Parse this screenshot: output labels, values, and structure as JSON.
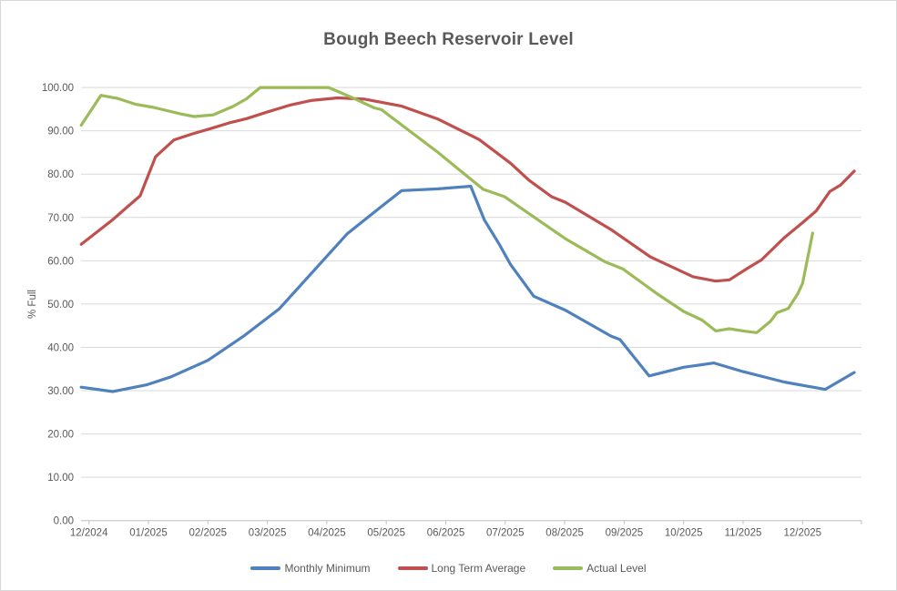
{
  "chart": {
    "title": "Bough Beech Reservoir Level"
  },
  "chart_data": {
    "type": "line",
    "title": "Bough Beech Reservoir Level",
    "xlabel": "",
    "ylabel": "% Full",
    "ylim": [
      0,
      100
    ],
    "y_tick_step": 10,
    "y_tick_decimals": 2,
    "grid": "horizontal",
    "legend_position": "bottom",
    "x_tick_labels": [
      "12/2024",
      "01/2025",
      "02/2025",
      "03/2025",
      "04/2025",
      "05/2025",
      "06/2025",
      "07/2025",
      "08/2025",
      "09/2025",
      "10/2025",
      "11/2025",
      "12/2025"
    ],
    "x_unit": "months relative to the 12/2024 tick (fractional = intra-month readings)",
    "series": [
      {
        "name": "Monthly Minimum",
        "color": "#4F81BD",
        "points": [
          [
            -0.13,
            30.8
          ],
          [
            0.4,
            29.8
          ],
          [
            0.98,
            31.4
          ],
          [
            1.38,
            33.2
          ],
          [
            2.0,
            37.0
          ],
          [
            2.6,
            42.6
          ],
          [
            3.2,
            48.9
          ],
          [
            3.88,
            59.2
          ],
          [
            4.34,
            66.2
          ],
          [
            4.87,
            72.0
          ],
          [
            5.26,
            76.2
          ],
          [
            5.87,
            76.6
          ],
          [
            6.42,
            77.2
          ],
          [
            6.65,
            69.4
          ],
          [
            6.9,
            63.8
          ],
          [
            7.09,
            59.1
          ],
          [
            7.48,
            51.8
          ],
          [
            8.01,
            48.6
          ],
          [
            8.78,
            42.6
          ],
          [
            8.93,
            41.8
          ],
          [
            9.42,
            33.4
          ],
          [
            10.0,
            35.4
          ],
          [
            10.51,
            36.4
          ],
          [
            11.0,
            34.4
          ],
          [
            11.69,
            32.0
          ],
          [
            12.38,
            30.3
          ],
          [
            12.87,
            34.2
          ]
        ]
      },
      {
        "name": "Long Term Average",
        "color": "#C0504D",
        "points": [
          [
            -0.13,
            63.8
          ],
          [
            0.4,
            69.5
          ],
          [
            0.86,
            75.0
          ],
          [
            1.12,
            84.0
          ],
          [
            1.43,
            87.9
          ],
          [
            1.74,
            89.3
          ],
          [
            2.04,
            90.5
          ],
          [
            2.35,
            91.8
          ],
          [
            2.65,
            92.8
          ],
          [
            2.99,
            94.3
          ],
          [
            3.37,
            95.9
          ],
          [
            3.73,
            97.0
          ],
          [
            4.18,
            97.6
          ],
          [
            4.64,
            97.3
          ],
          [
            5.26,
            95.7
          ],
          [
            5.87,
            92.7
          ],
          [
            6.56,
            88.0
          ],
          [
            7.09,
            82.5
          ],
          [
            7.4,
            78.6
          ],
          [
            7.78,
            74.8
          ],
          [
            8.01,
            73.5
          ],
          [
            8.78,
            67.2
          ],
          [
            9.44,
            60.9
          ],
          [
            10.16,
            56.3
          ],
          [
            10.54,
            55.3
          ],
          [
            10.77,
            55.6
          ],
          [
            11.08,
            58.3
          ],
          [
            11.31,
            60.2
          ],
          [
            11.69,
            65.3
          ],
          [
            12.0,
            68.8
          ],
          [
            12.23,
            71.5
          ],
          [
            12.46,
            76.0
          ],
          [
            12.64,
            77.5
          ],
          [
            12.87,
            80.7
          ]
        ]
      },
      {
        "name": "Actual Level",
        "color": "#9BBB59",
        "points": [
          [
            -0.13,
            91.3
          ],
          [
            0.2,
            98.2
          ],
          [
            0.48,
            97.5
          ],
          [
            0.79,
            96.1
          ],
          [
            1.09,
            95.4
          ],
          [
            1.54,
            93.9
          ],
          [
            1.77,
            93.3
          ],
          [
            2.09,
            93.7
          ],
          [
            2.42,
            95.6
          ],
          [
            2.65,
            97.4
          ],
          [
            2.88,
            100.0
          ],
          [
            4.03,
            100.0
          ],
          [
            4.37,
            98.0
          ],
          [
            4.8,
            95.3
          ],
          [
            4.92,
            94.9
          ],
          [
            5.1,
            93.0
          ],
          [
            5.87,
            85.0
          ],
          [
            6.37,
            79.4
          ],
          [
            6.63,
            76.5
          ],
          [
            6.99,
            74.8
          ],
          [
            7.25,
            72.3
          ],
          [
            8.01,
            65.1
          ],
          [
            8.67,
            59.8
          ],
          [
            8.98,
            58.1
          ],
          [
            9.54,
            52.5
          ],
          [
            10.0,
            48.3
          ],
          [
            10.31,
            46.3
          ],
          [
            10.54,
            43.8
          ],
          [
            10.77,
            44.3
          ],
          [
            11.0,
            43.8
          ],
          [
            11.23,
            43.4
          ],
          [
            11.46,
            46.0
          ],
          [
            11.57,
            48.0
          ],
          [
            11.76,
            49.0
          ],
          [
            11.92,
            52.4
          ],
          [
            12.0,
            54.8
          ],
          [
            12.17,
            66.4
          ]
        ]
      }
    ],
    "colors": {
      "title_text": "#595959",
      "axis_text": "#595959",
      "gridline": "#D9D9D9",
      "axis_line": "#BFBFBF"
    }
  }
}
